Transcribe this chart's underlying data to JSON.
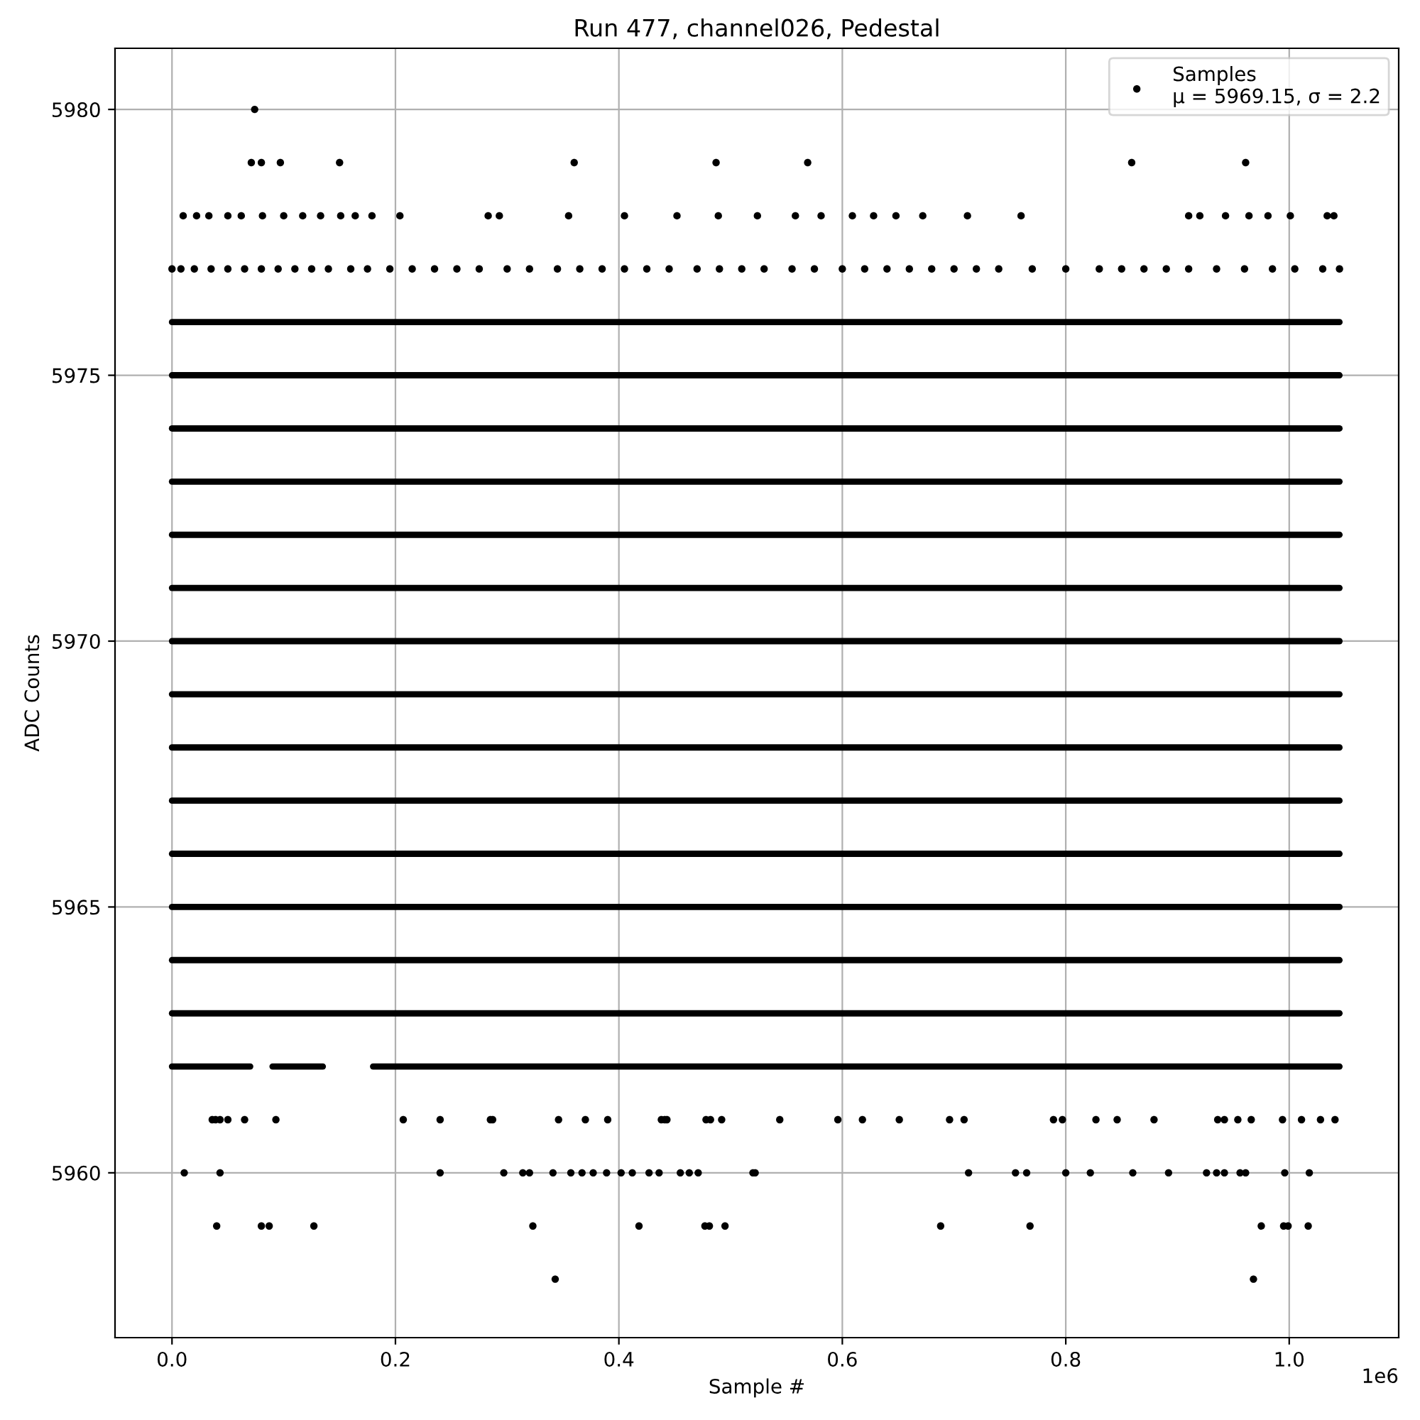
{
  "chart_data": {
    "type": "scatter",
    "title": "Run 477, channel026, Pedestal",
    "xlabel": "Sample #",
    "ylabel": "ADC Counts",
    "xlim": [
      -0.051,
      1.098
    ],
    "ylim": [
      5956.9,
      5981.15
    ],
    "xticks": [
      {
        "value": 0,
        "label": "0.0"
      },
      0.2,
      0.4,
      0.6,
      0.8,
      {
        "value": 1,
        "label": "1.0"
      }
    ],
    "yticks": [
      5960,
      5965,
      5970,
      5975,
      5980
    ],
    "annotations": [
      "1e6"
    ],
    "grid": true,
    "legend": "top right",
    "marker": "circle",
    "series": [
      {
        "type": "line",
        "color": "#000000",
        "marker": "none",
        "x": [
          0,
          1.045
        ],
        "values": [
          5976,
          5976
        ]
      },
      {
        "type": "line",
        "color": "#000000",
        "marker": "none",
        "x": [
          0,
          1.045
        ],
        "values": [
          5975,
          5975
        ]
      },
      {
        "type": "line",
        "color": "#000000",
        "marker": "none",
        "x": [
          0,
          1.045
        ],
        "values": [
          5974,
          5974
        ]
      },
      {
        "type": "line",
        "color": "#000000",
        "marker": "none",
        "x": [
          0,
          1.045
        ],
        "values": [
          5973,
          5973
        ]
      },
      {
        "type": "line",
        "color": "#000000",
        "marker": "none",
        "x": [
          0,
          1.045
        ],
        "values": [
          5972,
          5972
        ]
      },
      {
        "type": "line",
        "color": "#000000",
        "marker": "none",
        "x": [
          0,
          1.045
        ],
        "values": [
          5971,
          5971
        ]
      },
      {
        "type": "line",
        "color": "#000000",
        "marker": "none",
        "x": [
          0,
          1.045
        ],
        "values": [
          5970,
          5970
        ]
      },
      {
        "type": "line",
        "color": "#000000",
        "marker": "none",
        "x": [
          0,
          1.045
        ],
        "values": [
          5969,
          5969
        ]
      },
      {
        "type": "line",
        "color": "#000000",
        "marker": "none",
        "x": [
          0,
          1.045
        ],
        "values": [
          5968,
          5968
        ]
      },
      {
        "type": "line",
        "color": "#000000",
        "marker": "none",
        "x": [
          0,
          1.045
        ],
        "values": [
          5967,
          5967
        ]
      },
      {
        "type": "line",
        "color": "#000000",
        "marker": "none",
        "x": [
          0,
          1.045
        ],
        "values": [
          5966,
          5966
        ]
      },
      {
        "type": "line",
        "color": "#000000",
        "marker": "none",
        "x": [
          0,
          1.045
        ],
        "values": [
          5965,
          5965
        ]
      },
      {
        "type": "line",
        "color": "#000000",
        "marker": "none",
        "x": [
          0,
          1.045
        ],
        "values": [
          5964,
          5964
        ]
      },
      {
        "type": "line",
        "color": "#000000",
        "marker": "none",
        "x": [
          0,
          1.045
        ],
        "values": [
          5963,
          5963
        ]
      },
      {
        "type": "line",
        "color": "#000000",
        "marker": "none",
        "x": [
          0,
          0.07
        ],
        "values": [
          5962,
          5962
        ]
      },
      {
        "type": "line",
        "color": "#000000",
        "marker": "none",
        "x": [
          0.09,
          0.135
        ],
        "values": [
          5962,
          5962
        ]
      },
      {
        "type": "line",
        "color": "#000000",
        "marker": "none",
        "x": [
          0.18,
          1.045
        ],
        "values": [
          5962,
          5962
        ]
      },
      {
        "name": "Samples\nμ = 5969.15, σ = 2.2",
        "color": "#000000",
        "x": [
          0.074,
          0.071,
          0.08,
          0.097,
          0.15,
          0.36,
          0.487,
          0.569,
          0.859,
          0.961,
          0.01,
          0.022,
          0.033,
          0.05,
          0.062,
          0.081,
          0.1,
          0.117,
          0.133,
          0.151,
          0.164,
          0.179,
          0.204,
          0.283,
          0.293,
          0.355,
          0.405,
          0.452,
          0.489,
          0.524,
          0.558,
          0.581,
          0.609,
          0.628,
          0.648,
          0.672,
          0.712,
          0.76,
          0.91,
          0.92,
          0.943,
          0.964,
          0.981,
          1.001,
          1.034,
          1.04,
          0,
          0.008,
          0.02,
          0.035,
          0.05,
          0.065,
          0.08,
          0.095,
          0.11,
          0.125,
          0.14,
          0.16,
          0.175,
          0.195,
          0.215,
          0.235,
          0.255,
          0.275,
          0.3,
          0.32,
          0.345,
          0.365,
          0.385,
          0.405,
          0.425,
          0.445,
          0.47,
          0.49,
          0.51,
          0.53,
          0.555,
          0.575,
          0.6,
          0.62,
          0.64,
          0.66,
          0.68,
          0.7,
          0.72,
          0.74,
          0.77,
          0.8,
          0.83,
          0.85,
          0.87,
          0.89,
          0.91,
          0.935,
          0.96,
          0.985,
          1.005,
          1.03,
          1.045,
          0.036,
          0.039,
          0.043,
          0.05,
          0.065,
          0.093,
          0.207,
          0.24,
          0.285,
          0.287,
          0.346,
          0.37,
          0.39,
          0.438,
          0.441,
          0.443,
          0.478,
          0.482,
          0.492,
          0.544,
          0.596,
          0.618,
          0.651,
          0.696,
          0.709,
          0.789,
          0.797,
          0.827,
          0.846,
          0.879,
          0.936,
          0.942,
          0.954,
          0.966,
          0.994,
          1.011,
          1.028,
          1.041,
          0.011,
          0.043,
          0.24,
          0.297,
          0.314,
          0.32,
          0.341,
          0.357,
          0.367,
          0.377,
          0.389,
          0.402,
          0.412,
          0.427,
          0.436,
          0.455,
          0.463,
          0.471,
          0.52,
          0.522,
          0.713,
          0.755,
          0.765,
          0.8,
          0.822,
          0.86,
          0.892,
          0.926,
          0.935,
          0.942,
          0.956,
          0.961,
          0.996,
          1.018,
          0.04,
          0.08,
          0.087,
          0.127,
          0.323,
          0.418,
          0.477,
          0.481,
          0.495,
          0.688,
          0.768,
          0.975,
          0.995,
          0.999,
          1.017,
          0.343,
          0.968
        ],
        "values": [
          5980,
          5979,
          5979,
          5979,
          5979,
          5979,
          5979,
          5979,
          5979,
          5979,
          5978,
          5978,
          5978,
          5978,
          5978,
          5978,
          5978,
          5978,
          5978,
          5978,
          5978,
          5978,
          5978,
          5978,
          5978,
          5978,
          5978,
          5978,
          5978,
          5978,
          5978,
          5978,
          5978,
          5978,
          5978,
          5978,
          5978,
          5978,
          5978,
          5978,
          5978,
          5978,
          5978,
          5978,
          5978,
          5978,
          5977,
          5977,
          5977,
          5977,
          5977,
          5977,
          5977,
          5977,
          5977,
          5977,
          5977,
          5977,
          5977,
          5977,
          5977,
          5977,
          5977,
          5977,
          5977,
          5977,
          5977,
          5977,
          5977,
          5977,
          5977,
          5977,
          5977,
          5977,
          5977,
          5977,
          5977,
          5977,
          5977,
          5977,
          5977,
          5977,
          5977,
          5977,
          5977,
          5977,
          5977,
          5977,
          5977,
          5977,
          5977,
          5977,
          5977,
          5977,
          5977,
          5977,
          5977,
          5977,
          5977,
          5961,
          5961,
          5961,
          5961,
          5961,
          5961,
          5961,
          5961,
          5961,
          5961,
          5961,
          5961,
          5961,
          5961,
          5961,
          5961,
          5961,
          5961,
          5961,
          5961,
          5961,
          5961,
          5961,
          5961,
          5961,
          5961,
          5961,
          5961,
          5961,
          5961,
          5961,
          5961,
          5961,
          5961,
          5961,
          5961,
          5961,
          5961,
          5960,
          5960,
          5960,
          5960,
          5960,
          5960,
          5960,
          5960,
          5960,
          5960,
          5960,
          5960,
          5960,
          5960,
          5960,
          5960,
          5960,
          5960,
          5960,
          5960,
          5960,
          5960,
          5960,
          5960,
          5960,
          5960,
          5960,
          5960,
          5960,
          5960,
          5960,
          5960,
          5960,
          5960,
          5959,
          5959,
          5959,
          5959,
          5959,
          5959,
          5959,
          5959,
          5959,
          5959,
          5959,
          5959,
          5959,
          5959,
          5959,
          5958,
          5958
        ]
      }
    ]
  }
}
